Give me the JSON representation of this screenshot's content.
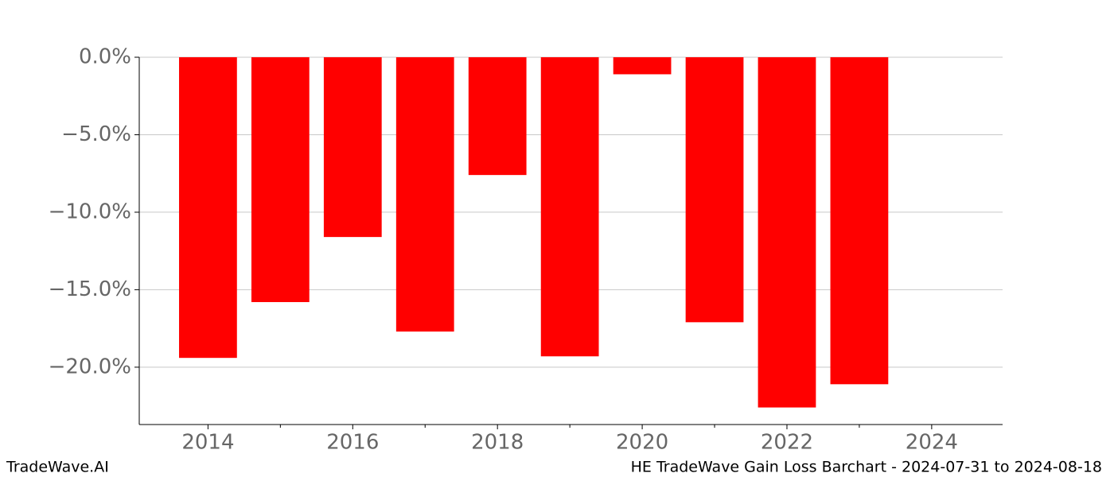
{
  "chart_data": {
    "type": "bar",
    "x": [
      2014,
      2015,
      2016,
      2017,
      2018,
      2019,
      2020,
      2021,
      2022,
      2023
    ],
    "values": [
      -19.4,
      -15.8,
      -11.6,
      -17.7,
      -7.6,
      -19.3,
      -1.1,
      -17.1,
      -22.6,
      -21.1
    ],
    "color": "#ff0000",
    "xlim": [
      2013.05,
      2024.98
    ],
    "xticks": [
      2014,
      2016,
      2018,
      2020,
      2022,
      2024
    ],
    "x_minor_ticks": [
      2015,
      2017,
      2019,
      2021,
      2023
    ],
    "ylim": [
      -23.7,
      0
    ],
    "yticks": [
      {
        "value": 0,
        "label": "0.0%"
      },
      {
        "value": -5,
        "label": "−5.0%"
      },
      {
        "value": -10,
        "label": "−10.0%"
      },
      {
        "value": -15,
        "label": "−15.0%"
      },
      {
        "value": -20,
        "label": "−20.0%"
      }
    ],
    "grid": true
  },
  "footer": {
    "left": "TradeWave.AI",
    "right": "HE TradeWave Gain Loss Barchart - 2024-07-31 to 2024-08-18"
  }
}
